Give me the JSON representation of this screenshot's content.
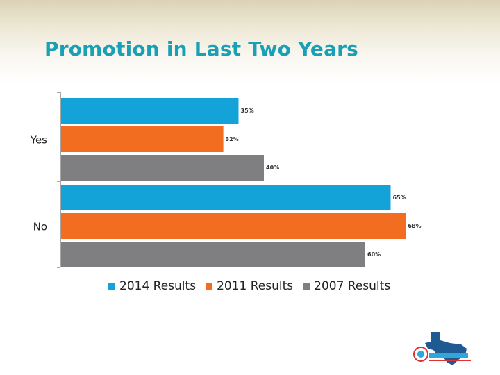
{
  "slide": {
    "title": "Promotion in Last Two Years"
  },
  "chart_data": {
    "type": "bar",
    "orientation": "horizontal",
    "categories": [
      "Yes",
      "No"
    ],
    "series": [
      {
        "name": "2014 Results",
        "values": [
          35,
          65
        ],
        "color": "#13a3d9",
        "labels": [
          "35%",
          "65%"
        ]
      },
      {
        "name": "2011 Results",
        "values": [
          32,
          68
        ],
        "color": "#f26d1f",
        "labels": [
          "32%",
          "68%"
        ]
      },
      {
        "name": "2007 Results",
        "values": [
          40,
          60
        ],
        "color": "#7f7f81",
        "labels": [
          "40%",
          "60%"
        ]
      }
    ],
    "xlim": [
      0,
      68
    ],
    "grid": false,
    "legend_position": "bottom"
  },
  "logo": {
    "name": "texas-organization-logo",
    "colors": [
      "#1f5a93",
      "#e03030",
      "#2fa7d8"
    ]
  }
}
